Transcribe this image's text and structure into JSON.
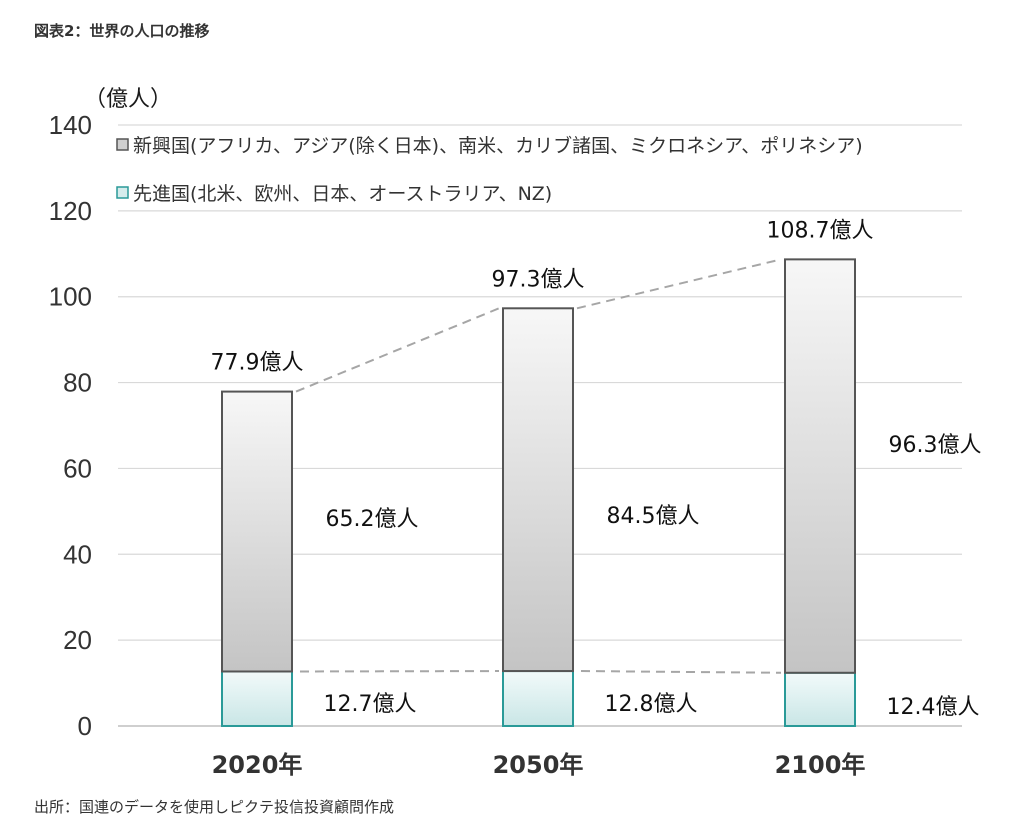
{
  "title": "図表2：世界の人口の推移",
  "source": "出所：国連のデータを使用しピクテ投信投資顧問作成",
  "chart_data": {
    "type": "bar",
    "stacked": true,
    "unit_label": "（億人）",
    "categories": [
      "2020年",
      "2050年",
      "2100年"
    ],
    "ylim": [
      0,
      140
    ],
    "yticks": [
      0,
      20,
      40,
      60,
      80,
      100,
      120,
      140
    ],
    "grid": true,
    "legend_position": "top-left",
    "series": [
      {
        "name": "先進国(北米、欧州、日本、オーストラリア、NZ)",
        "values": [
          12.7,
          12.8,
          12.4
        ],
        "labels": [
          "12.7億人",
          "12.8億人",
          "12.4億人"
        ],
        "color": "#d5ecec",
        "edge": "#2a9a98"
      },
      {
        "name": "新興国(アフリカ、アジア(除く日本)、南米、カリブ諸国、ミクロネシア、ポリネシア)",
        "values": [
          65.2,
          84.5,
          96.3
        ],
        "labels": [
          "65.2億人",
          "84.5億人",
          "96.3億人"
        ],
        "color": "#cfcfcf",
        "edge": "#555555"
      }
    ],
    "totals": [
      77.9,
      97.3,
      108.7
    ],
    "total_labels": [
      "77.9億人",
      "97.3億人",
      "108.7億人"
    ],
    "connector_lines": "dashed"
  }
}
